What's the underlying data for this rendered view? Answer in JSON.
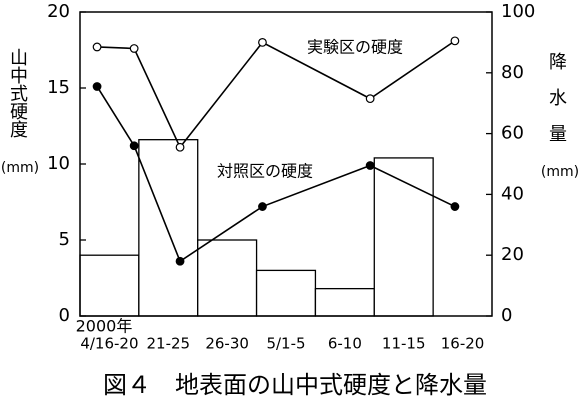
{
  "chart_data": {
    "type": "bar-line",
    "caption": "図４　地表面の山中式硬度と降水量",
    "y_label": "山中式硬度",
    "y_unit": "(mm)",
    "y2_label": "降水量",
    "y2_unit": "(mm)",
    "x_annotation": "2000年",
    "categories": [
      "4/16-20",
      "21-25",
      "26-30",
      "5/1-5",
      "6-10",
      "11-15",
      "16-20"
    ],
    "xlim": [
      0,
      7
    ],
    "ylim": [
      0,
      20
    ],
    "yticks": [
      0,
      5,
      10,
      15,
      20
    ],
    "y2lim": [
      0,
      100
    ],
    "y2ticks": [
      0,
      20,
      40,
      60,
      80,
      100
    ],
    "bars": {
      "axis": "y2",
      "color": "#ffffff",
      "values": [
        20,
        58,
        25,
        15,
        9,
        52,
        0
      ]
    },
    "series": [
      {
        "name": "実験区の硬度",
        "color": "#000000",
        "marker": "open",
        "x": [
          0.29,
          0.92,
          1.7,
          3.1,
          4.93,
          6.37
        ],
        "values": [
          17.7,
          17.6,
          11.1,
          18.0,
          14.3,
          18.1
        ]
      },
      {
        "name": "対照区の硬度",
        "color": "#000000",
        "marker": "filled",
        "x": [
          0.29,
          0.92,
          1.7,
          3.1,
          4.93,
          6.37
        ],
        "values": [
          15.1,
          11.2,
          3.6,
          7.2,
          9.9,
          7.2
        ]
      }
    ]
  }
}
